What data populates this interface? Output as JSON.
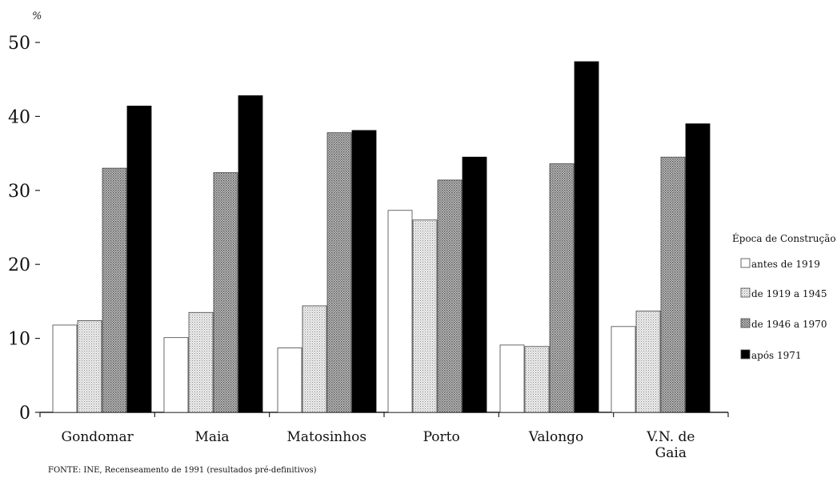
{
  "chart_data": {
    "type": "bar",
    "ylabel": "%",
    "ylim": [
      0,
      50
    ],
    "yticks": [
      0,
      10,
      20,
      30,
      40,
      50
    ],
    "categories": [
      "Gondomar",
      "Maia",
      "Matosinhos",
      "Porto",
      "Valongo",
      "V.N. de Gaia"
    ],
    "legend_title": "Época de Construção",
    "legend_position": "right",
    "grid": false,
    "series": [
      {
        "name": "antes de 1919",
        "fill": "white",
        "values": [
          11.8,
          10.1,
          8.7,
          27.3,
          9.1,
          11.6
        ]
      },
      {
        "name": "de 1919 a 1945",
        "fill": "light-gray",
        "values": [
          12.4,
          13.5,
          14.4,
          26.0,
          8.9,
          13.7
        ]
      },
      {
        "name": "de 1946 a 1970",
        "fill": "medium-gray",
        "values": [
          33.0,
          32.4,
          37.8,
          31.4,
          33.6,
          34.5
        ]
      },
      {
        "name": "após 1971",
        "fill": "black",
        "values": [
          41.4,
          42.8,
          38.1,
          34.5,
          47.4,
          39.0
        ]
      }
    ],
    "source": "FONTE: INE, Recenseamento de 1991 (resultados pré-definitivos)"
  },
  "colors": {
    "black": "#000000",
    "light_gray": "#d9d9d9",
    "medium_gray": "#a9a9a9",
    "white": "#ffffff"
  }
}
